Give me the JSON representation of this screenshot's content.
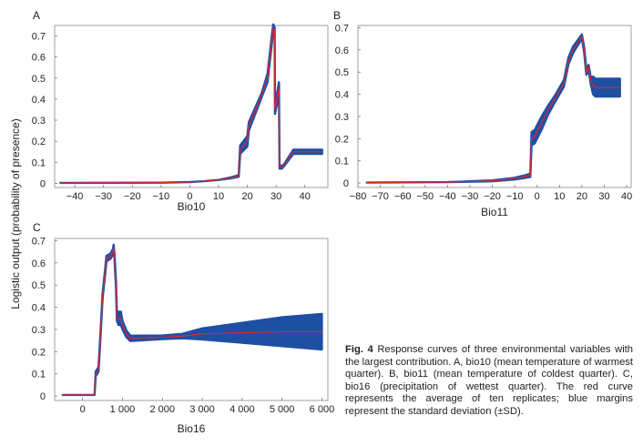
{
  "ylabel": "Logistic output (probability of presence)",
  "caption": {
    "label": "Fig. 4",
    "text": "Response curves of three environmental variables with the largest contribution.  A, bio10 (mean temperature of warmest quarter).  B, bio11 (mean temperature of coldest quarter).  C, bio16 (precipitation of wettest quarter).  The red curve represents the average of ten replicates; blue margins represent the standard deviation (±SD)."
  },
  "colors": {
    "mean": "#e8262c",
    "sd": "#1f4fa3"
  },
  "chart_data": [
    {
      "type": "line",
      "panel": "A",
      "xlabel": "Bio10",
      "xlim": [
        -47,
        48
      ],
      "ylim": [
        -0.02,
        0.75
      ],
      "xticks": [
        -40,
        -30,
        -20,
        -10,
        0,
        10,
        20,
        30,
        40
      ],
      "yticks": [
        0,
        0.1,
        0.2,
        0.3,
        0.4,
        0.5,
        0.6,
        0.7
      ],
      "ytick_labels": [
        "0",
        "0.1",
        "0.2",
        "0.3",
        "0.4",
        "0.5",
        "0.6",
        "0.7"
      ],
      "x": [
        -45,
        -10,
        0,
        5,
        10,
        14,
        17,
        17.5,
        20,
        20.5,
        25,
        27,
        28.5,
        29,
        29.5,
        29.6,
        31,
        31.2,
        32,
        33,
        36,
        46
      ],
      "y": [
        0.002,
        0.003,
        0.006,
        0.01,
        0.016,
        0.025,
        0.035,
        0.16,
        0.2,
        0.27,
        0.42,
        0.5,
        0.68,
        0.74,
        0.72,
        0.35,
        0.45,
        0.08,
        0.075,
        0.09,
        0.15,
        0.15
      ],
      "sd": [
        0,
        0,
        0,
        0,
        0,
        0.002,
        0.004,
        0.02,
        0.025,
        0.02,
        0.01,
        0.02,
        0.02,
        0.015,
        0.02,
        0.02,
        0.03,
        0.01,
        0.005,
        0.005,
        0.01,
        0.01
      ]
    },
    {
      "type": "line",
      "panel": "B",
      "xlabel": "Bio11",
      "xlim": [
        -80,
        42
      ],
      "ylim": [
        -0.02,
        0.71
      ],
      "xticks": [
        -80,
        -70,
        -60,
        -50,
        -40,
        -30,
        -20,
        -10,
        0,
        10,
        20,
        30,
        40
      ],
      "yticks": [
        0,
        0.1,
        0.2,
        0.3,
        0.4,
        0.5,
        0.6,
        0.7
      ],
      "ytick_labels": [
        "0",
        "0.1",
        "0.2",
        "0.3",
        "0.4",
        "0.5",
        "0.6",
        "0.7"
      ],
      "x": [
        -76,
        -40,
        -20,
        -10,
        -5,
        -3,
        -2.5,
        -1,
        0,
        2,
        5,
        8,
        12,
        14,
        16,
        18,
        20,
        21,
        22,
        23,
        24,
        25,
        26,
        37
      ],
      "y": [
        0.002,
        0.004,
        0.01,
        0.02,
        0.03,
        0.035,
        0.2,
        0.21,
        0.23,
        0.27,
        0.33,
        0.38,
        0.45,
        0.55,
        0.6,
        0.63,
        0.66,
        0.6,
        0.5,
        0.52,
        0.46,
        0.44,
        0.43,
        0.43
      ],
      "sd": [
        0,
        0,
        0.002,
        0.004,
        0.006,
        0.008,
        0.03,
        0.03,
        0.03,
        0.03,
        0.02,
        0.015,
        0.015,
        0.015,
        0.015,
        0.012,
        0.01,
        0.012,
        0.012,
        0.012,
        0.015,
        0.04,
        0.04,
        0.04
      ]
    },
    {
      "type": "line",
      "panel": "C",
      "xlabel": "Bio16",
      "xlim": [
        -700,
        6150
      ],
      "ylim": [
        -0.02,
        0.71
      ],
      "xticks": [
        0,
        1000,
        2000,
        3000,
        4000,
        5000,
        6000
      ],
      "xtick_labels": [
        "0",
        "1 000",
        "2 000",
        "3 000",
        "4 000",
        "5 000",
        "6 000"
      ],
      "yticks": [
        0,
        0.1,
        0.2,
        0.3,
        0.4,
        0.5,
        0.6,
        0.7
      ],
      "ytick_labels": [
        "0",
        "0.1",
        "0.2",
        "0.3",
        "0.4",
        "0.5",
        "0.6",
        "0.7"
      ],
      "x": [
        -500,
        300,
        330,
        400,
        450,
        500,
        560,
        600,
        700,
        760,
        780,
        800,
        840,
        860,
        900,
        960,
        1000,
        1100,
        1200,
        2000,
        2500,
        3000,
        4000,
        5000,
        6000
      ],
      "y": [
        0.005,
        0.005,
        0.1,
        0.12,
        0.28,
        0.45,
        0.55,
        0.62,
        0.63,
        0.65,
        0.67,
        0.63,
        0.5,
        0.36,
        0.35,
        0.35,
        0.32,
        0.28,
        0.26,
        0.265,
        0.27,
        0.28,
        0.285,
        0.29,
        0.29
      ],
      "sd": [
        0,
        0,
        0.01,
        0.01,
        0.012,
        0.012,
        0.012,
        0.012,
        0.012,
        0.012,
        0.012,
        0.012,
        0.015,
        0.02,
        0.03,
        0.03,
        0.02,
        0.015,
        0.012,
        0.008,
        0.01,
        0.025,
        0.045,
        0.065,
        0.08
      ]
    }
  ]
}
